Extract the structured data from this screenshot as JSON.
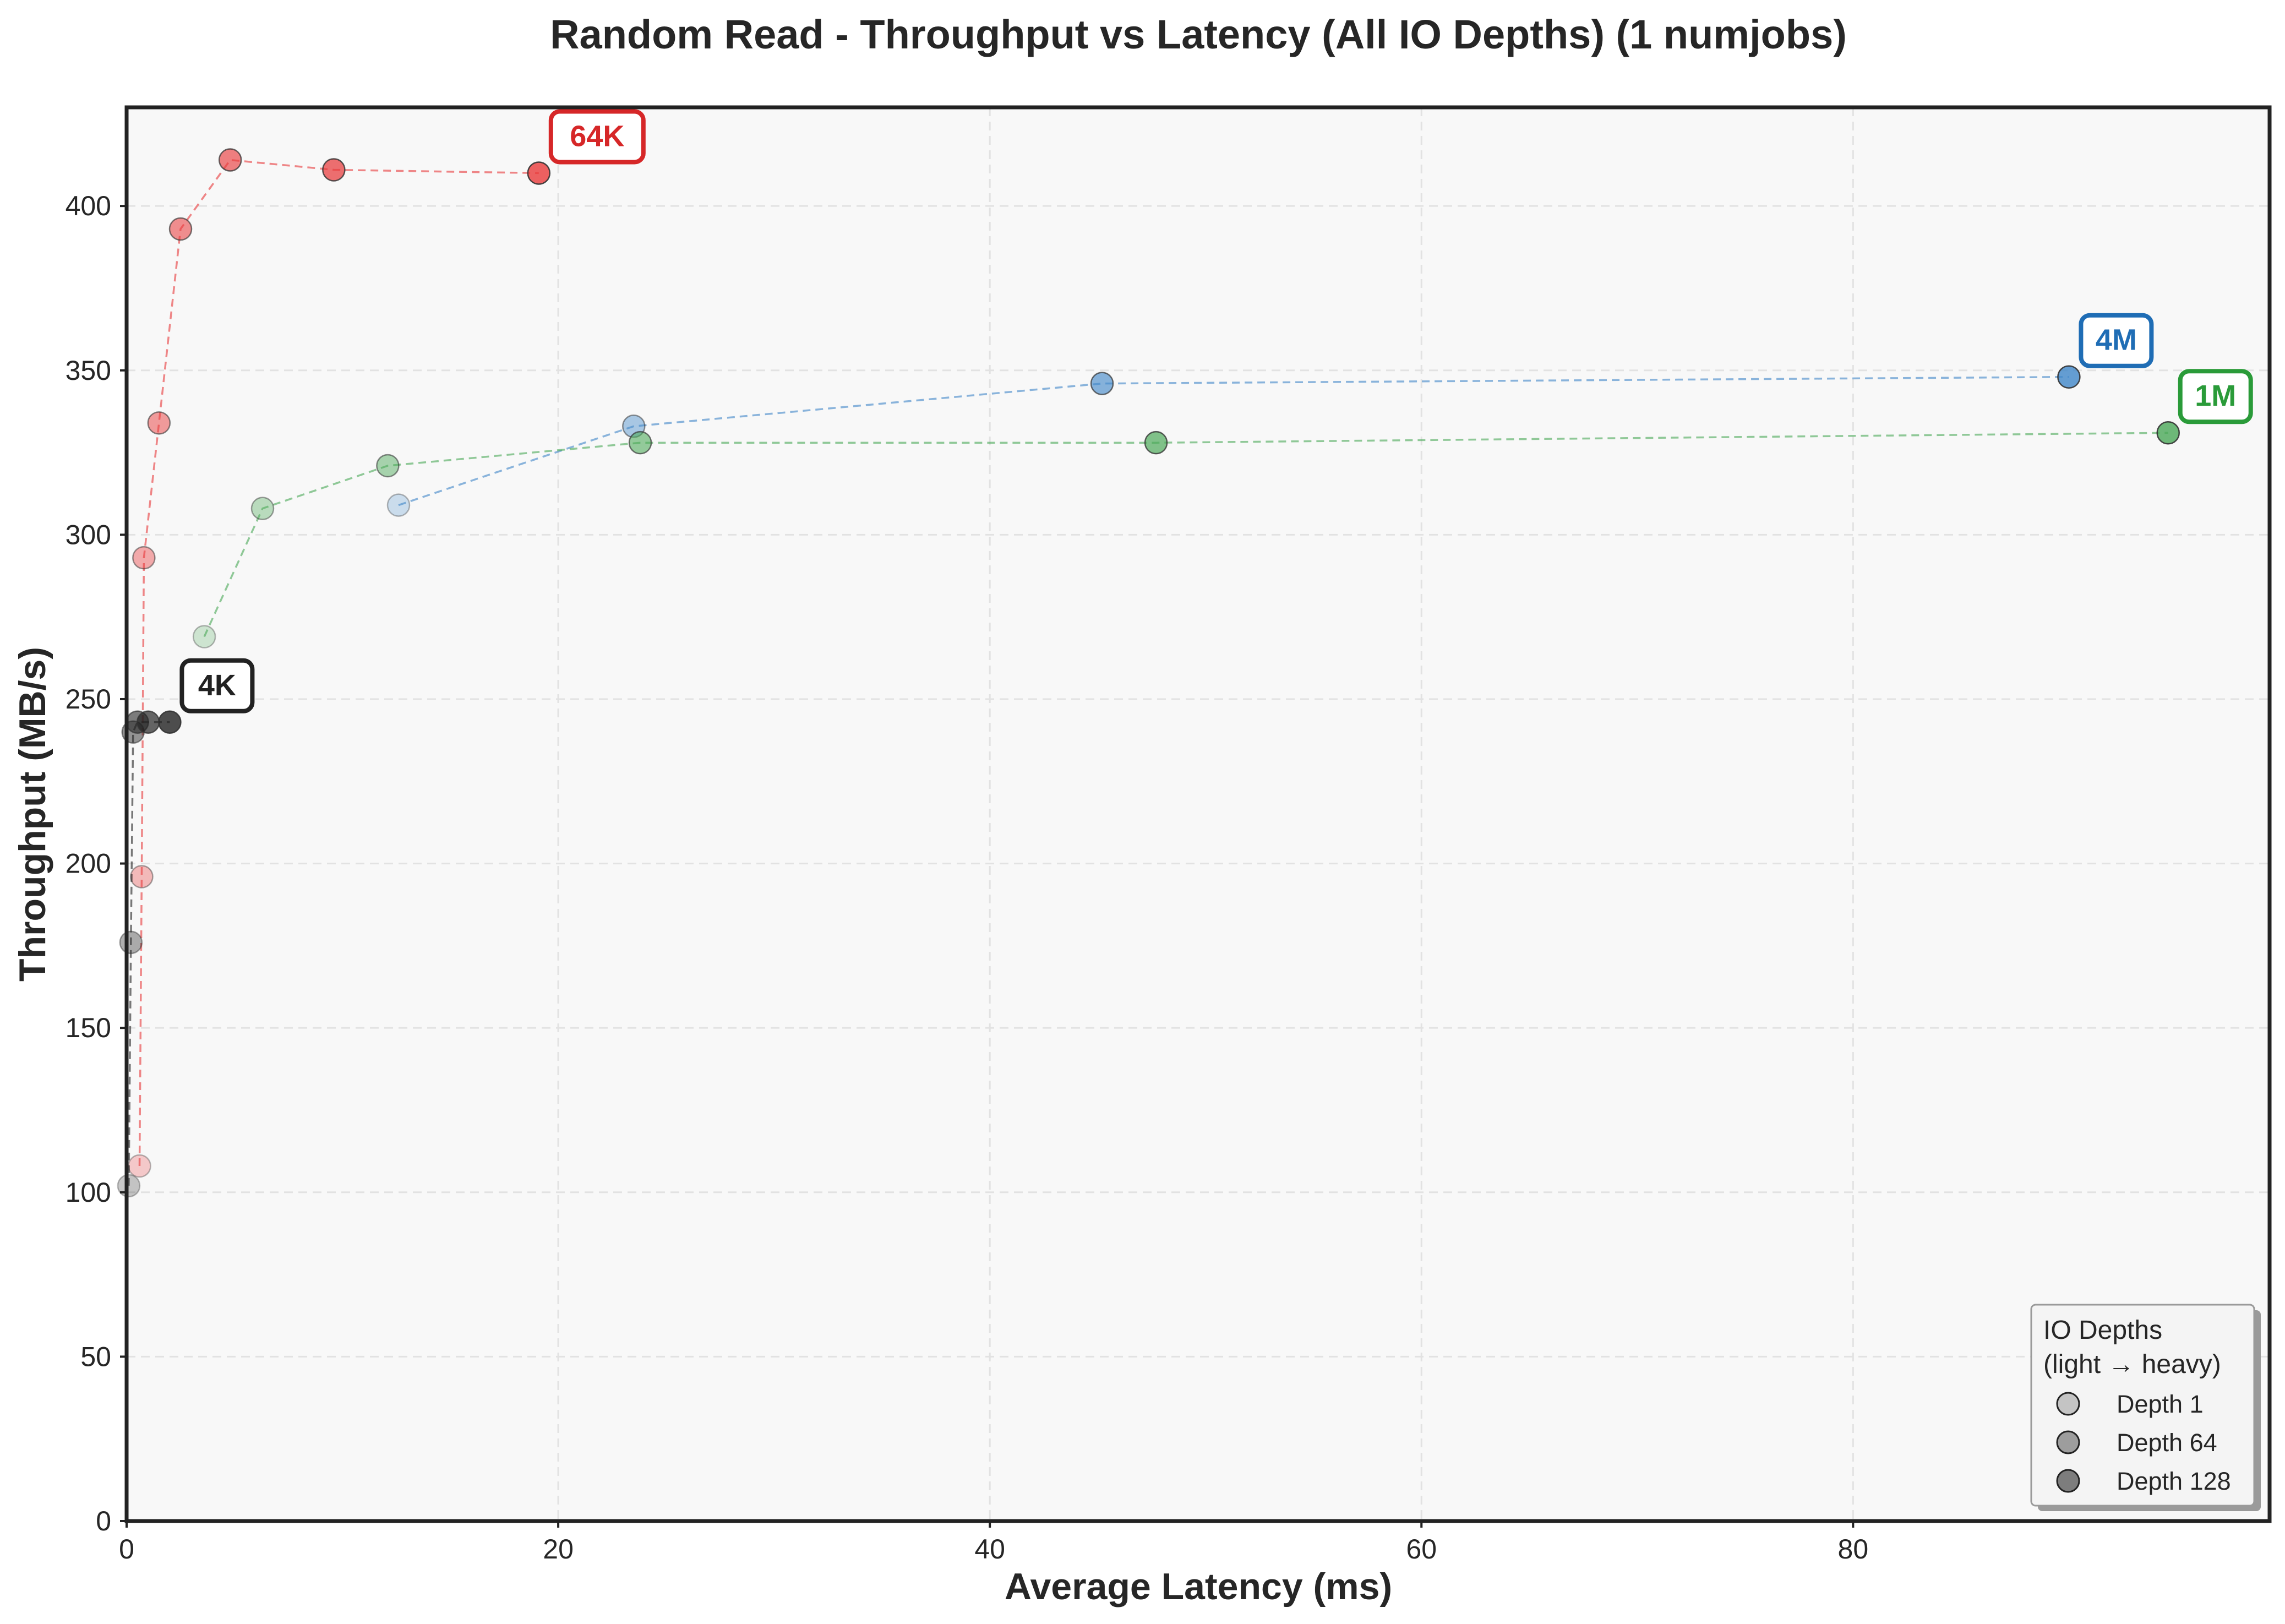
{
  "chart_data": {
    "type": "scatter",
    "title": "Random Read - Throughput vs Latency (All IO Depths) (1 numjobs)",
    "xlabel": "Average Latency (ms)",
    "ylabel": "Throughput (MB/s)",
    "xlim": [
      0,
      99.3
    ],
    "ylim": [
      0,
      430
    ],
    "xticks": [
      0,
      20,
      40,
      60,
      80
    ],
    "yticks": [
      0,
      50,
      100,
      150,
      200,
      250,
      300,
      350,
      400
    ],
    "grid": true,
    "series": [
      {
        "name": "64K",
        "color": "#e8393a",
        "points": [
          [
            0.6,
            108
          ],
          [
            0.7,
            196
          ],
          [
            0.8,
            293
          ],
          [
            1.5,
            334
          ],
          [
            2.5,
            393
          ],
          [
            4.8,
            414
          ],
          [
            9.6,
            411
          ],
          [
            19.1,
            410
          ]
        ]
      },
      {
        "name": "4M",
        "color": "#3f86c8",
        "points": [
          [
            12.6,
            309
          ],
          [
            23.5,
            333
          ],
          [
            45.2,
            346
          ],
          [
            90.0,
            348
          ]
        ]
      },
      {
        "name": "1M",
        "color": "#4aa857",
        "points": [
          [
            3.6,
            269
          ],
          [
            6.3,
            308
          ],
          [
            12.1,
            321
          ],
          [
            23.8,
            328
          ],
          [
            47.7,
            328
          ],
          [
            94.6,
            331
          ]
        ]
      },
      {
        "name": "4K",
        "color": "#222222",
        "points": [
          [
            0.1,
            102
          ],
          [
            0.2,
            176
          ],
          [
            0.3,
            240
          ],
          [
            0.5,
            243
          ],
          [
            1.0,
            243
          ],
          [
            2.0,
            243
          ]
        ]
      }
    ],
    "annotations": [
      {
        "text": "64K",
        "color": "#d62728"
      },
      {
        "text": "4M",
        "color": "#1f6db5"
      },
      {
        "text": "1M",
        "color": "#2a9b39"
      },
      {
        "text": "4K",
        "color": "#222222"
      }
    ],
    "legend": {
      "title_line1": "IO Depths",
      "title_line2": "(light → heavy)",
      "placement": "bottom-right",
      "items": [
        {
          "label": "Depth 1",
          "alpha": 0.3
        },
        {
          "label": "Depth 64",
          "alpha": 0.55
        },
        {
          "label": "Depth 128",
          "alpha": 0.75
        }
      ]
    }
  }
}
